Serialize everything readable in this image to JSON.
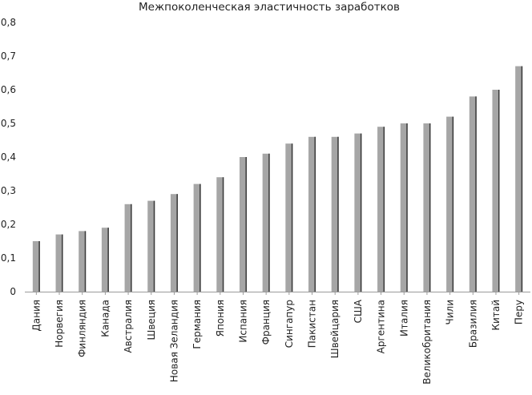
{
  "chart_data": {
    "type": "bar",
    "title": "Межпоколенческая эластичность заработков",
    "xlabel": "",
    "ylabel": "",
    "ylim": [
      0,
      0.8
    ],
    "yticks": [
      "0",
      "0,1",
      "0,2",
      "0,3",
      "0,4",
      "0,5",
      "0,6",
      "0,7",
      "0,8"
    ],
    "grid": false,
    "categories": [
      "Дания",
      "Норвегия",
      "Финляндия",
      "Канада",
      "Австралия",
      "Швеция",
      "Новая Зеландия",
      "Германия",
      "Япония",
      "Испания",
      "Франция",
      "Сингапур",
      "Пакистан",
      "Швейцария",
      "США",
      "Аргентина",
      "Италия",
      "Великобритания",
      "Чили",
      "Бразилия",
      "Китай",
      "Перу"
    ],
    "values": [
      0.15,
      0.17,
      0.18,
      0.19,
      0.26,
      0.27,
      0.29,
      0.32,
      0.34,
      0.4,
      0.41,
      0.44,
      0.46,
      0.46,
      0.47,
      0.49,
      0.5,
      0.5,
      0.52,
      0.58,
      0.6,
      0.67
    ],
    "colors": {
      "bar_fill": "#a6a6a6",
      "bar_edge": "#3a3a3a",
      "axis": "#9a9a9a"
    }
  }
}
